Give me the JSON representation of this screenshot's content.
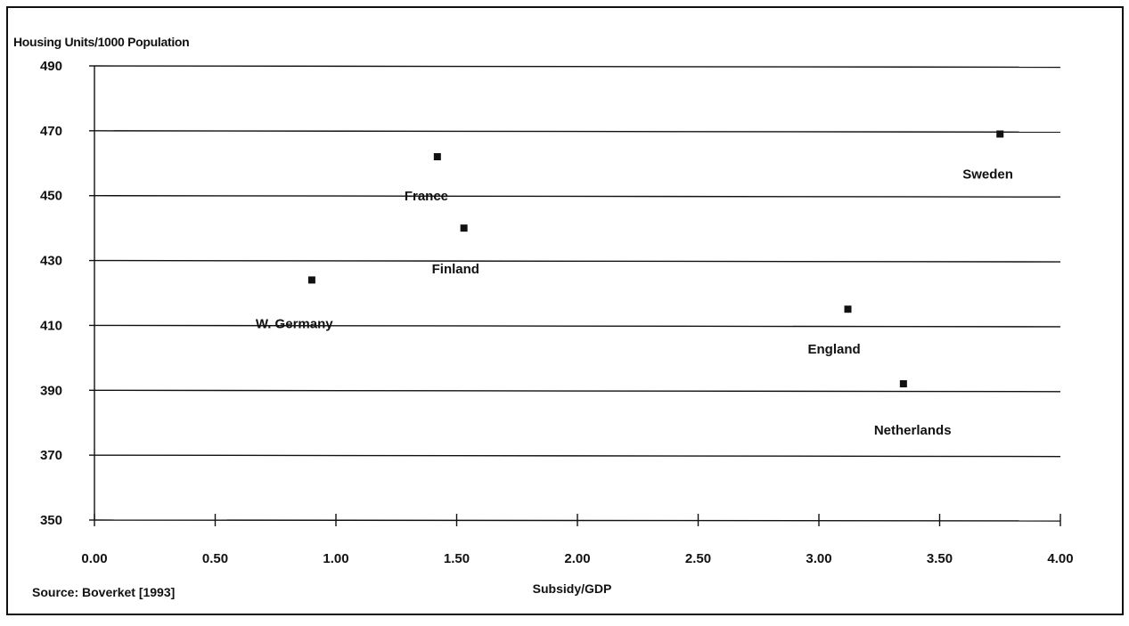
{
  "chart_data": {
    "type": "scatter",
    "title": "",
    "ylabel": "Housing Units/1000 Population",
    "xlabel": "Subsidy/GDP",
    "source": "Source: Boverket [1993]",
    "xlim": [
      0,
      4
    ],
    "ylim": [
      350,
      490
    ],
    "x_ticks": [
      "0.00",
      "0.50",
      "1.00",
      "1.50",
      "2.00",
      "2.50",
      "3.00",
      "3.50",
      "4.00"
    ],
    "y_ticks": [
      "350",
      "370",
      "390",
      "410",
      "430",
      "450",
      "470",
      "490"
    ],
    "grid": true,
    "points": [
      {
        "label": "W. Germany",
        "x": 0.9,
        "y": 424
      },
      {
        "label": "France",
        "x": 1.42,
        "y": 462
      },
      {
        "label": "Finland",
        "x": 1.53,
        "y": 440
      },
      {
        "label": "England",
        "x": 3.12,
        "y": 415
      },
      {
        "label": "Netherlands",
        "x": 3.35,
        "y": 392
      },
      {
        "label": "Sweden",
        "x": 3.75,
        "y": 469
      }
    ]
  }
}
